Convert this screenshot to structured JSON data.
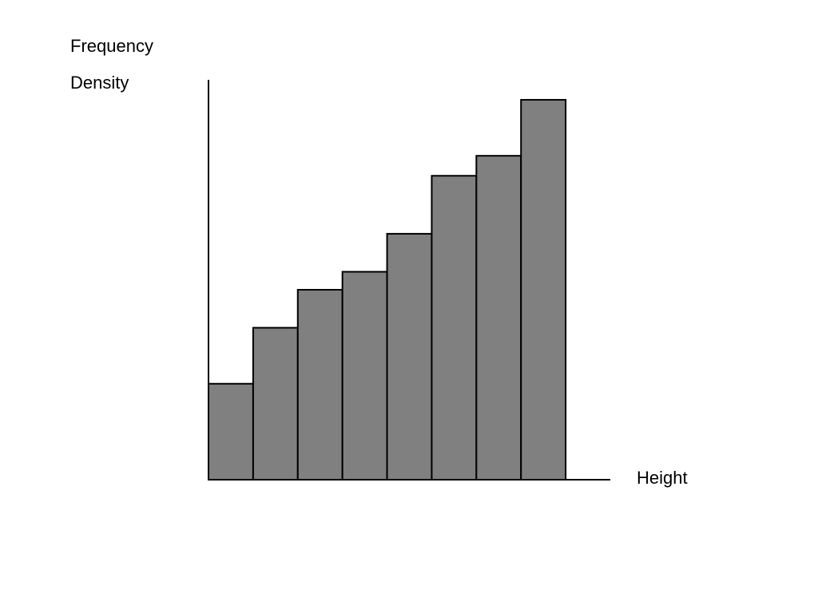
{
  "chart_data": {
    "type": "histogram",
    "ylabel": [
      "Frequency",
      "Density"
    ],
    "xlabel": "Height",
    "bins": [
      0,
      1,
      2,
      3,
      4,
      5,
      6,
      7,
      8
    ],
    "values": [
      2.4,
      3.8,
      4.75,
      5.2,
      6.15,
      7.6,
      8.1,
      9.5
    ],
    "color": "#808080",
    "xlim": [
      0,
      9
    ],
    "ylim": [
      0,
      10
    ]
  }
}
